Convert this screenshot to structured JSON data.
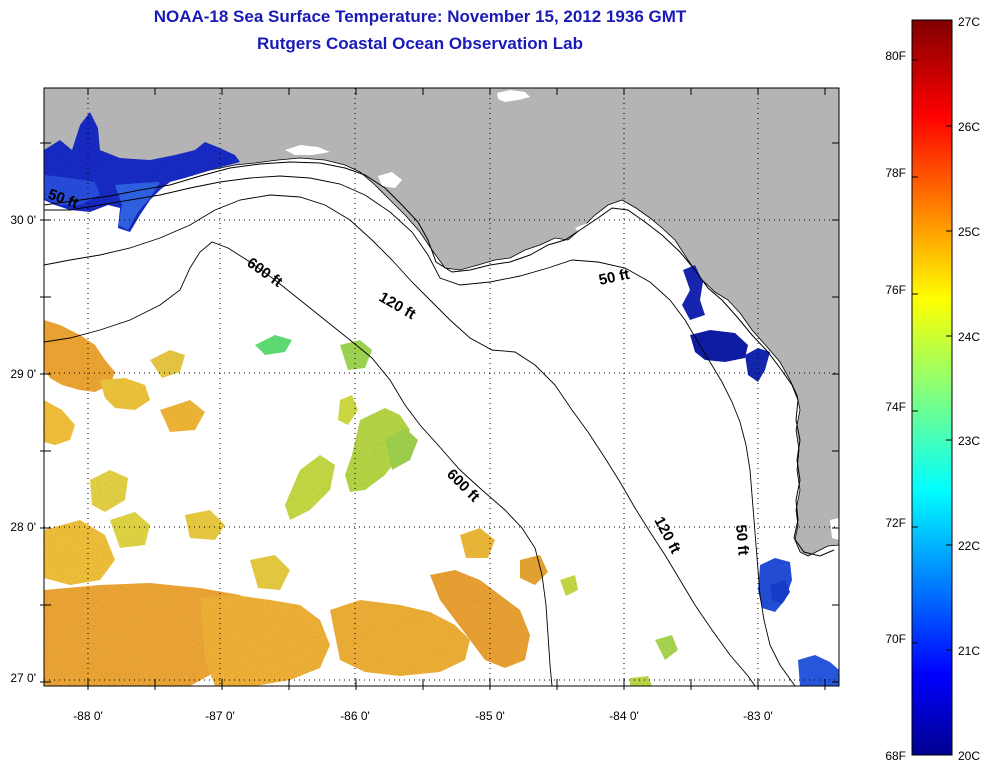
{
  "title": {
    "line1": "NOAA-18 Sea Surface Temperature:  November 15, 2012 1936 GMT",
    "line2": "Rutgers Coastal Ocean Observation Lab"
  },
  "axes": {
    "lon_labels": [
      "-88 0'",
      "-87 0'",
      "-86 0'",
      "-85 0'",
      "-84 0'",
      "-83 0'"
    ],
    "lat_labels": [
      "30 0'",
      "29 0'",
      "28 0'",
      "27 0'"
    ]
  },
  "contours": {
    "label_50": "50 ft",
    "label_120": "120 ft",
    "label_600": "600 ft"
  },
  "colorbar": {
    "fahrenheit_labels": [
      "80F",
      "78F",
      "76F",
      "74F",
      "72F",
      "70F",
      "68F"
    ],
    "celsius_labels": [
      "27C",
      "26C",
      "25C",
      "24C",
      "23C",
      "22C",
      "21C",
      "20C"
    ],
    "min_c": 20,
    "max_c": 27
  },
  "colors": {
    "land": "#b4b4b4",
    "ocean": "#ffffff",
    "title": "#1a1ab8"
  }
}
